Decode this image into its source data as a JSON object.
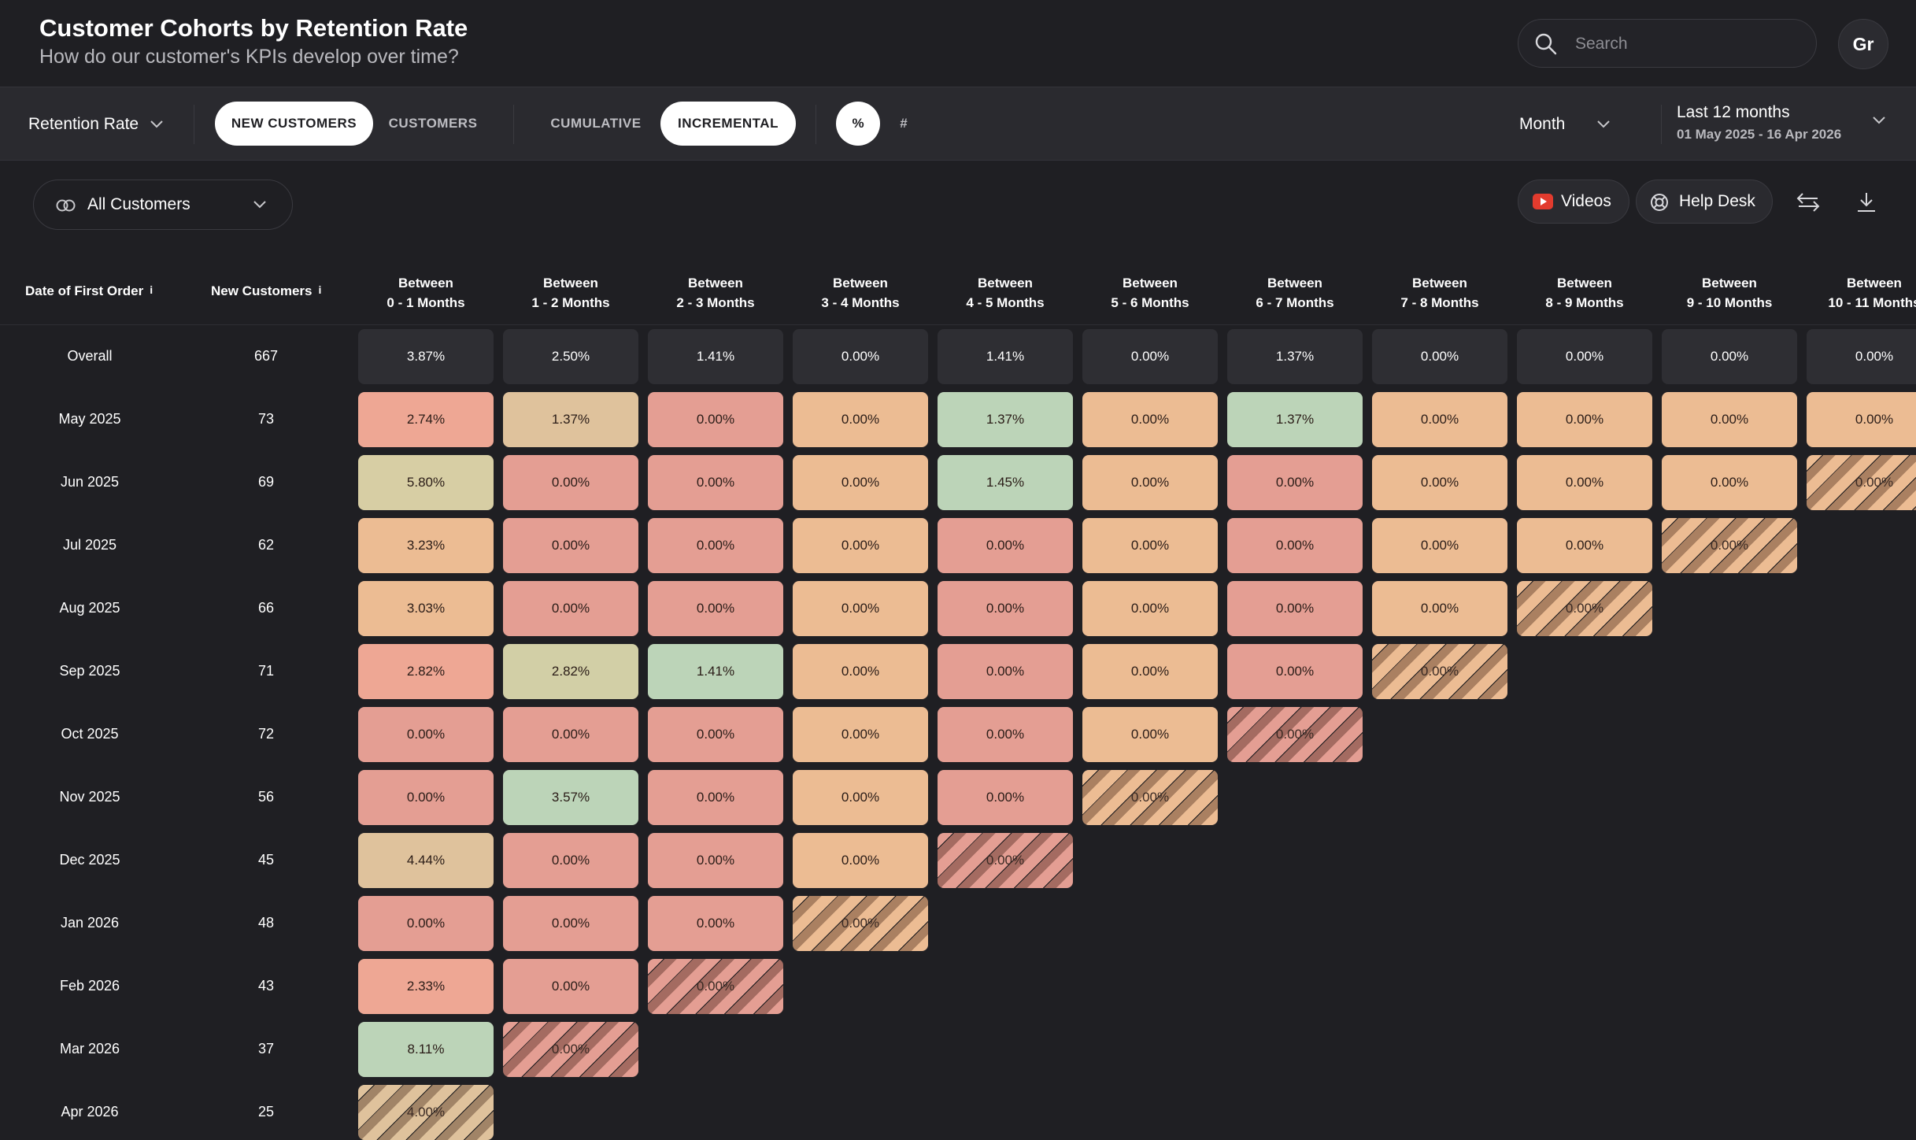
{
  "header": {
    "title": "Customer Cohorts by Retention Rate",
    "subtitle": "How do our customer's KPIs develop over time?",
    "search_placeholder": "Search",
    "avatar_initials": "Gr"
  },
  "toolbar": {
    "metric_label": "Retention Rate",
    "customer_toggle": [
      "NEW CUSTOMERS",
      "CUSTOMERS"
    ],
    "customer_toggle_active": "NEW CUSTOMERS",
    "mode_toggle": [
      "CUMULATIVE",
      "INCREMENTAL"
    ],
    "mode_toggle_active": "INCREMENTAL",
    "unit_toggle": [
      "%",
      "#"
    ],
    "unit_toggle_active": "%",
    "period": "Month",
    "date_range_label": "Last 12 months",
    "date_range_sub": "01 May 2025 - 16 Apr 2026"
  },
  "filters": {
    "segment": "All Customers",
    "videos_label": "Videos",
    "helpdesk_label": "Help Desk"
  },
  "table": {
    "col_first_order": "Date of First Order",
    "col_new_customers": "New Customers",
    "period_headers": [
      [
        "Between",
        "0 - 1 Months"
      ],
      [
        "Between",
        "1 - 2 Months"
      ],
      [
        "Between",
        "2 - 3 Months"
      ],
      [
        "Between",
        "3 - 4 Months"
      ],
      [
        "Between",
        "4 - 5 Months"
      ],
      [
        "Between",
        "5 - 6 Months"
      ],
      [
        "Between",
        "6 - 7 Months"
      ],
      [
        "Between",
        "7 - 8 Months"
      ],
      [
        "Between",
        "8 - 9 Months"
      ],
      [
        "Between",
        "9 - 10 Months"
      ],
      [
        "Between",
        "10 - 11 Months"
      ]
    ],
    "overall": {
      "label": "Overall",
      "count": "667",
      "values": [
        "3.87%",
        "2.50%",
        "1.41%",
        "0.00%",
        "1.41%",
        "0.00%",
        "1.37%",
        "0.00%",
        "0.00%",
        "0.00%",
        "0.00%"
      ]
    },
    "rows": [
      {
        "label": "May 2025",
        "count": "73",
        "values": [
          "2.74%",
          "1.37%",
          "0.00%",
          "0.00%",
          "1.37%",
          "0.00%",
          "1.37%",
          "0.00%",
          "0.00%",
          "0.00%",
          "0.00%"
        ],
        "colors": [
          "#eea794",
          "#dfc29c",
          "#e49e93",
          "#ecbc93",
          "#bcd4b8",
          "#ecbc93",
          "#bcd4b8",
          "#ecbc93",
          "#ecbc93",
          "#ecbc93",
          "#ecbc93"
        ],
        "partial": [
          false,
          false,
          false,
          false,
          false,
          false,
          false,
          false,
          false,
          false,
          false
        ]
      },
      {
        "label": "Jun 2025",
        "count": "69",
        "values": [
          "5.80%",
          "0.00%",
          "0.00%",
          "0.00%",
          "1.45%",
          "0.00%",
          "0.00%",
          "0.00%",
          "0.00%",
          "0.00%",
          "0.00%"
        ],
        "colors": [
          "#d7cea4",
          "#e49e93",
          "#e49e93",
          "#ecbc93",
          "#bcd4b8",
          "#ecbc93",
          "#e49e93",
          "#ecbc93",
          "#ecbc93",
          "#ecbc93",
          "#ecbc93"
        ],
        "partial": [
          false,
          false,
          false,
          false,
          false,
          false,
          false,
          false,
          false,
          false,
          true
        ]
      },
      {
        "label": "Jul 2025",
        "count": "62",
        "values": [
          "3.23%",
          "0.00%",
          "0.00%",
          "0.00%",
          "0.00%",
          "0.00%",
          "0.00%",
          "0.00%",
          "0.00%",
          "0.00%"
        ],
        "colors": [
          "#ecbc93",
          "#e49e93",
          "#e49e93",
          "#ecbc93",
          "#e49e93",
          "#ecbc93",
          "#e49e93",
          "#ecbc93",
          "#ecbc93",
          "#ecbc93"
        ],
        "partial": [
          false,
          false,
          false,
          false,
          false,
          false,
          false,
          false,
          false,
          true
        ]
      },
      {
        "label": "Aug 2025",
        "count": "66",
        "values": [
          "3.03%",
          "0.00%",
          "0.00%",
          "0.00%",
          "0.00%",
          "0.00%",
          "0.00%",
          "0.00%",
          "0.00%"
        ],
        "colors": [
          "#ecbc93",
          "#e49e93",
          "#e49e93",
          "#ecbc93",
          "#e49e93",
          "#ecbc93",
          "#e49e93",
          "#ecbc93",
          "#ecbc93"
        ],
        "partial": [
          false,
          false,
          false,
          false,
          false,
          false,
          false,
          false,
          true
        ]
      },
      {
        "label": "Sep 2025",
        "count": "71",
        "values": [
          "2.82%",
          "2.82%",
          "1.41%",
          "0.00%",
          "0.00%",
          "0.00%",
          "0.00%",
          "0.00%"
        ],
        "colors": [
          "#eea794",
          "#d2cfa6",
          "#bcd4b8",
          "#ecbc93",
          "#e49e93",
          "#ecbc93",
          "#e49e93",
          "#ecbc93"
        ],
        "partial": [
          false,
          false,
          false,
          false,
          false,
          false,
          false,
          true
        ]
      },
      {
        "label": "Oct 2025",
        "count": "72",
        "values": [
          "0.00%",
          "0.00%",
          "0.00%",
          "0.00%",
          "0.00%",
          "0.00%",
          "0.00%"
        ],
        "colors": [
          "#e49e93",
          "#e49e93",
          "#e49e93",
          "#ecbc93",
          "#e49e93",
          "#ecbc93",
          "#e49e93"
        ],
        "partial": [
          false,
          false,
          false,
          false,
          false,
          false,
          true
        ]
      },
      {
        "label": "Nov 2025",
        "count": "56",
        "values": [
          "0.00%",
          "3.57%",
          "0.00%",
          "0.00%",
          "0.00%",
          "0.00%"
        ],
        "colors": [
          "#e49e93",
          "#bcd4b8",
          "#e49e93",
          "#ecbc93",
          "#e49e93",
          "#ecbc93"
        ],
        "partial": [
          false,
          false,
          false,
          false,
          false,
          true
        ]
      },
      {
        "label": "Dec 2025",
        "count": "45",
        "values": [
          "4.44%",
          "0.00%",
          "0.00%",
          "0.00%",
          "0.00%"
        ],
        "colors": [
          "#dfc29c",
          "#e49e93",
          "#e49e93",
          "#ecbc93",
          "#e49e93"
        ],
        "partial": [
          false,
          false,
          false,
          false,
          true
        ]
      },
      {
        "label": "Jan 2026",
        "count": "48",
        "values": [
          "0.00%",
          "0.00%",
          "0.00%",
          "0.00%"
        ],
        "colors": [
          "#e49e93",
          "#e49e93",
          "#e49e93",
          "#ecbc93"
        ],
        "partial": [
          false,
          false,
          false,
          true
        ]
      },
      {
        "label": "Feb 2026",
        "count": "43",
        "values": [
          "2.33%",
          "0.00%",
          "0.00%"
        ],
        "colors": [
          "#eea794",
          "#e49e93",
          "#e49e93"
        ],
        "partial": [
          false,
          false,
          true
        ]
      },
      {
        "label": "Mar 2026",
        "count": "37",
        "values": [
          "8.11%",
          "0.00%"
        ],
        "colors": [
          "#bcd4b8",
          "#e49e93"
        ],
        "partial": [
          false,
          true
        ]
      },
      {
        "label": "Apr 2026",
        "count": "25",
        "values": [
          "4.00%"
        ],
        "colors": [
          "#dfc29c"
        ],
        "partial": [
          true
        ]
      }
    ]
  }
}
